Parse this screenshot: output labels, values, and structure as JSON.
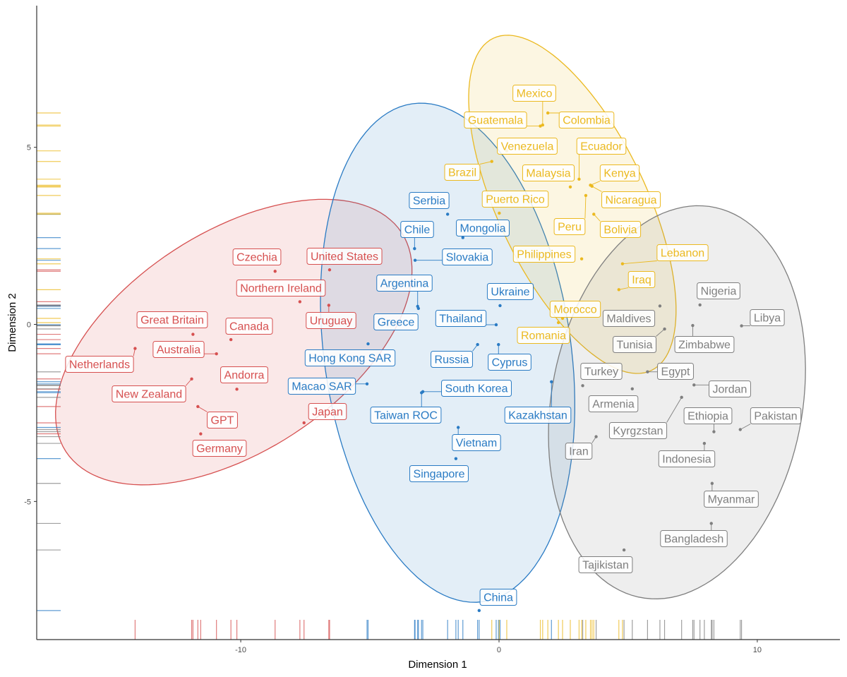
{
  "chart_data": {
    "type": "scatter",
    "title": "",
    "xlabel": "Dimension 1",
    "ylabel": "Dimension 2",
    "xlim": [
      -17.9,
      13.2
    ],
    "ylim": [
      -8.9,
      9.0
    ],
    "xticks": [
      -10,
      0,
      10
    ],
    "yticks": [
      -5,
      0,
      5
    ],
    "grid": false,
    "rug": true,
    "ellipses": true,
    "groups": [
      {
        "color": "#D65050",
        "ellipse": {
          "center": [
            -10.27,
            -0.5
          ],
          "axis1": [
            6.5,
            3.09
          ],
          "axis2": [
            -2.32,
            2.59
          ]
        },
        "points": [
          {
            "label": "Czechia",
            "x": -8.67,
            "y": 1.5
          },
          {
            "label": "United States",
            "x": -6.56,
            "y": 1.54
          },
          {
            "label": "Northern Ireland",
            "x": -7.71,
            "y": 0.64
          },
          {
            "label": "Uruguay",
            "x": -6.59,
            "y": 0.54
          },
          {
            "label": "Great Britain",
            "x": -11.85,
            "y": -0.28
          },
          {
            "label": "Canada",
            "x": -10.38,
            "y": -0.43
          },
          {
            "label": "Australia",
            "x": -10.94,
            "y": -0.83
          },
          {
            "label": "Netherlands",
            "x": -14.09,
            "y": -0.68
          },
          {
            "label": "New Zealand",
            "x": -11.9,
            "y": -1.54
          },
          {
            "label": "Andorra",
            "x": -10.15,
            "y": -1.83
          },
          {
            "label": "GPT",
            "x": -11.66,
            "y": -2.32
          },
          {
            "label": "Germany",
            "x": -11.55,
            "y": -3.09
          },
          {
            "label": "Japan",
            "x": -7.55,
            "y": -2.78
          }
        ]
      },
      {
        "color": "#2A7BC4",
        "ellipse": {
          "center": [
            -1.99,
            -0.8
          ],
          "axis1": [
            1.37,
            -7.03
          ],
          "axis2": [
            4.73,
            0.5
          ]
        },
        "points": [
          {
            "label": "Serbia",
            "x": -1.99,
            "y": 3.11
          },
          {
            "label": "Chile",
            "x": -3.27,
            "y": 2.14
          },
          {
            "label": "Mongolia",
            "x": -1.4,
            "y": 2.45
          },
          {
            "label": "Slovakia",
            "x": -3.25,
            "y": 1.81
          },
          {
            "label": "Argentina",
            "x": -3.15,
            "y": 0.51
          },
          {
            "label": "Greece",
            "x": -3.12,
            "y": 0.45
          },
          {
            "label": "Hong Kong SAR",
            "x": -5.07,
            "y": -0.55
          },
          {
            "label": "Macao SAR",
            "x": -5.11,
            "y": -1.68
          },
          {
            "label": "Ukraine",
            "x": 0.04,
            "y": 0.53
          },
          {
            "label": "Thailand",
            "x": -0.11,
            "y": -0.01
          },
          {
            "label": "Russia",
            "x": -0.83,
            "y": -0.57
          },
          {
            "label": "Cyprus",
            "x": -0.02,
            "y": -0.57
          },
          {
            "label": "South Korea",
            "x": -2.95,
            "y": -1.9
          },
          {
            "label": "Taiwan ROC",
            "x": -3.0,
            "y": -1.93
          },
          {
            "label": "Kazakhstan",
            "x": 2.03,
            "y": -1.62
          },
          {
            "label": "Vietnam",
            "x": -1.58,
            "y": -2.91
          },
          {
            "label": "Singapore",
            "x": -1.67,
            "y": -3.79
          },
          {
            "label": "China",
            "x": -0.77,
            "y": -8.08
          }
        ]
      },
      {
        "color": "#EBB920",
        "ellipse": {
          "center": [
            2.84,
            3.39
          ],
          "axis1": [
            3.06,
            -4.69
          ],
          "axis2": [
            2.6,
            0.9
          ]
        },
        "points": [
          {
            "label": "Mexico",
            "x": 1.69,
            "y": 5.63
          },
          {
            "label": "Guatemala",
            "x": 1.6,
            "y": 5.6
          },
          {
            "label": "Colombia",
            "x": 1.89,
            "y": 5.97
          },
          {
            "label": "Venezuela",
            "x": 0.3,
            "y": 4.9
          },
          {
            "label": "Ecuador",
            "x": 3.1,
            "y": 4.1
          },
          {
            "label": "Brazil",
            "x": -0.28,
            "y": 4.6
          },
          {
            "label": "Malaysia",
            "x": 2.76,
            "y": 3.88
          },
          {
            "label": "Kenya",
            "x": 3.54,
            "y": 3.93
          },
          {
            "label": "Puerto Rico",
            "x": 0.01,
            "y": 3.14
          },
          {
            "label": "Nicaragua",
            "x": 3.6,
            "y": 3.9
          },
          {
            "label": "Peru",
            "x": 3.36,
            "y": 3.64
          },
          {
            "label": "Bolivia",
            "x": 3.67,
            "y": 3.11
          },
          {
            "label": "Philippines",
            "x": 3.2,
            "y": 1.85
          },
          {
            "label": "Lebanon",
            "x": 4.78,
            "y": 1.71
          },
          {
            "label": "Iraq",
            "x": 4.64,
            "y": 0.98
          },
          {
            "label": "Morocco",
            "x": 2.46,
            "y": 0.17
          },
          {
            "label": "Romania",
            "x": 2.3,
            "y": 0.05
          }
        ]
      },
      {
        "color": "#7F7F7F",
        "ellipse": {
          "center": [
            6.89,
            -2.2
          ],
          "axis1": [
            0.74,
            5.55
          ],
          "axis2": [
            4.92,
            0.1
          ]
        },
        "points": [
          {
            "label": "Nigeria",
            "x": 7.78,
            "y": 0.55
          },
          {
            "label": "Maldives",
            "x": 6.23,
            "y": 0.52
          },
          {
            "label": "Libya",
            "x": 9.39,
            "y": -0.04
          },
          {
            "label": "Tunisia",
            "x": 6.41,
            "y": -0.13
          },
          {
            "label": "Zimbabwe",
            "x": 7.5,
            "y": -0.03
          },
          {
            "label": "Turkey",
            "x": 3.24,
            "y": -1.73
          },
          {
            "label": "Egypt",
            "x": 5.75,
            "y": -1.34
          },
          {
            "label": "Jordan",
            "x": 7.55,
            "y": -1.71
          },
          {
            "label": "Armenia",
            "x": 5.16,
            "y": -1.82
          },
          {
            "label": "Ethiopia",
            "x": 8.32,
            "y": -3.03
          },
          {
            "label": "Pakistan",
            "x": 9.34,
            "y": -2.97
          },
          {
            "label": "Kyrgzstan",
            "x": 7.07,
            "y": -2.06
          },
          {
            "label": "Iran",
            "x": 3.76,
            "y": -3.17
          },
          {
            "label": "Indonesia",
            "x": 7.95,
            "y": -3.36
          },
          {
            "label": "Myanmar",
            "x": 8.25,
            "y": -4.49
          },
          {
            "label": "Bangladesh",
            "x": 8.22,
            "y": -5.62
          },
          {
            "label": "Tajikistan",
            "x": 4.84,
            "y": -6.37
          }
        ]
      }
    ]
  }
}
